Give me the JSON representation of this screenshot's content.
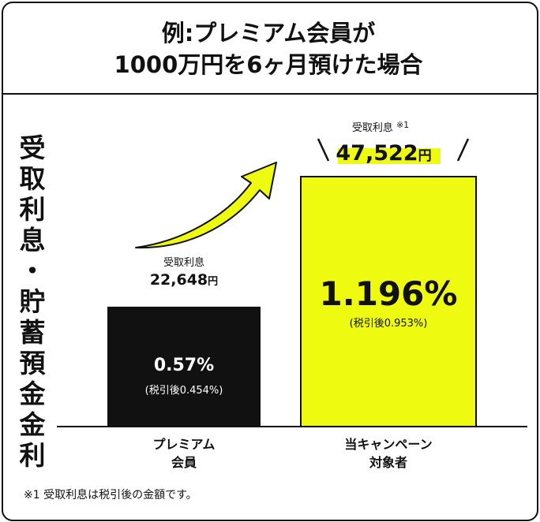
{
  "title_line1": "例:プレミアム会員が",
  "title_line2": "1000万円を6ヶ月預けた場合",
  "ylabel": "受取利息・貯蓄預金金利",
  "footnote": "※1 受取利息は税引後の金額です。",
  "colors": {
    "premium_bar": "#111111",
    "campaign_bar": "#eefa10",
    "highlight": "#eefa10",
    "arrow_fill": "#eefa10"
  },
  "chart_data": {
    "type": "bar",
    "categories": [
      "プレミアム\n会員",
      "当キャンペーン\n対象者"
    ],
    "series": [
      {
        "values": [
          0.57,
          1.196
        ]
      }
    ],
    "rate_labels": [
      "0.57%",
      "1.196%"
    ],
    "after_tax_labels": [
      "(税引後0.454%)",
      "(税引後0.953%)"
    ],
    "interest_caption": [
      "受取利息",
      "受取利息"
    ],
    "interest_note": [
      "",
      "※1"
    ],
    "interest_values": [
      22648,
      47522
    ],
    "interest_labels": [
      "22,648",
      "47,522"
    ],
    "interest_unit": "円",
    "category_lines": [
      [
        "プレミアム",
        "会員"
      ],
      [
        "当キャンペーン",
        "対象者"
      ]
    ]
  }
}
